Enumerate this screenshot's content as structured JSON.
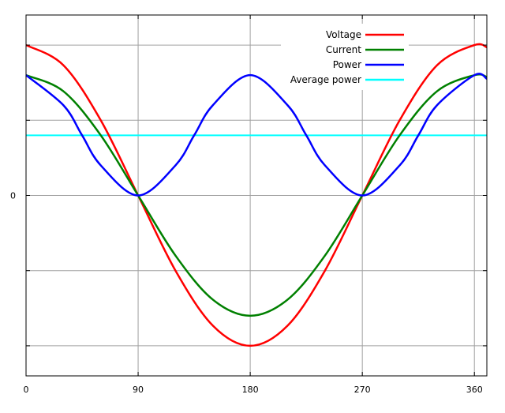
{
  "chart_data": {
    "type": "line",
    "title": "",
    "xlabel": "",
    "ylabel": "",
    "xlim": [
      0,
      370
    ],
    "ylim": [
      -1.2,
      1.2
    ],
    "grid": true,
    "legend_position": "top-right",
    "x_ticks": [
      {
        "value": 0,
        "label": "0"
      },
      {
        "value": 90,
        "label": "90"
      },
      {
        "value": 180,
        "label": "180"
      },
      {
        "value": 270,
        "label": "270"
      },
      {
        "value": 360,
        "label": "360"
      }
    ],
    "y_ticks": [
      {
        "value": -1,
        "label": ""
      },
      {
        "value": -0.5,
        "label": ""
      },
      {
        "value": 0,
        "label": "0"
      },
      {
        "value": 0.5,
        "label": ""
      },
      {
        "value": 1,
        "label": ""
      }
    ],
    "series": [
      {
        "name": "Voltage",
        "color": "#ff0000",
        "x": [
          0,
          30,
          60,
          90,
          120,
          150,
          180,
          210,
          240,
          270,
          300,
          330,
          360,
          370
        ],
        "y": [
          1.0,
          0.866,
          0.5,
          0.0,
          -0.5,
          -0.866,
          -1.0,
          -0.866,
          -0.5,
          0.0,
          0.5,
          0.866,
          1.0,
          0.985
        ]
      },
      {
        "name": "Current",
        "color": "#008000",
        "x": [
          0,
          30,
          60,
          90,
          120,
          150,
          180,
          210,
          240,
          270,
          300,
          330,
          360,
          370
        ],
        "y": [
          0.8,
          0.693,
          0.4,
          0.0,
          -0.4,
          -0.693,
          -0.8,
          -0.693,
          -0.4,
          0.0,
          0.4,
          0.693,
          0.8,
          0.788
        ]
      },
      {
        "name": "Power",
        "color": "#0000ff",
        "x": [
          0,
          30,
          45,
          60,
          90,
          120,
          135,
          150,
          180,
          210,
          225,
          240,
          270,
          300,
          315,
          330,
          360,
          370
        ],
        "y": [
          0.8,
          0.6,
          0.4,
          0.2,
          0.0,
          0.2,
          0.4,
          0.6,
          0.8,
          0.6,
          0.4,
          0.2,
          0.0,
          0.2,
          0.4,
          0.6,
          0.8,
          0.776
        ]
      },
      {
        "name": "Average power",
        "color": "#00ffff",
        "x": [
          0,
          370
        ],
        "y": [
          0.4,
          0.4
        ]
      }
    ]
  }
}
